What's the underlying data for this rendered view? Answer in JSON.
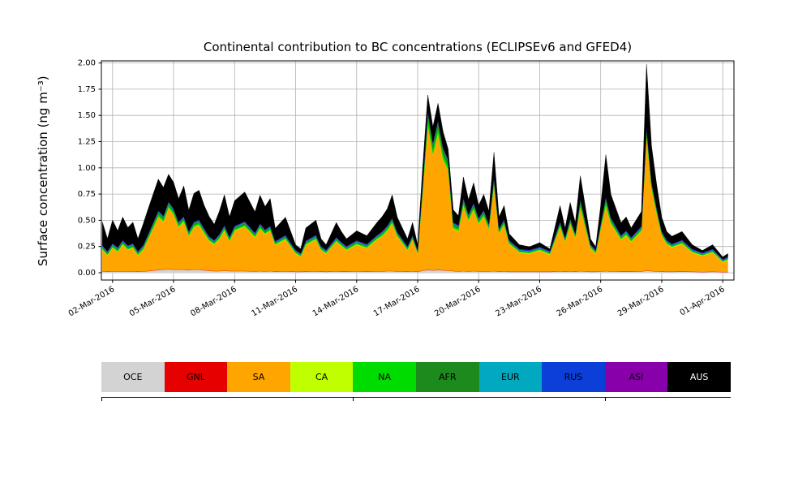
{
  "chart_data": {
    "type": "stacked_area",
    "title": "Continental contribution to BC concentrations (ECLIPSEv6 and GFED4)",
    "ylabel": "Surface concentration (ng m⁻³)",
    "xlabel": "",
    "grid": true,
    "legend_position": "bottom",
    "ylim": [
      -0.07,
      2.02
    ],
    "yticks": [
      0,
      0.25,
      0.5,
      0.75,
      1.0,
      1.25,
      1.5,
      1.75,
      2.0
    ],
    "ytick_labels": [
      "0.00",
      "0.25",
      "0.50",
      "0.75",
      "1.00",
      "1.25",
      "1.50",
      "1.75",
      "2.00"
    ],
    "xlim": [
      1.45,
      32.55
    ],
    "xticks": [
      2,
      5,
      8,
      11,
      14,
      17,
      20,
      23,
      26,
      29,
      32
    ],
    "xtick_labels": [
      "02-Mar-2016",
      "05-Mar-2016",
      "08-Mar-2016",
      "11-Mar-2016",
      "14-Mar-2016",
      "17-Mar-2016",
      "20-Mar-2016",
      "23-Mar-2016",
      "26-Mar-2016",
      "29-Mar-2016",
      "01-Apr-2016"
    ],
    "x_days": [
      1.5,
      1.75,
      2,
      2.25,
      2.5,
      2.75,
      3,
      3.25,
      3.5,
      3.75,
      4,
      4.25,
      4.5,
      4.75,
      5,
      5.25,
      5.5,
      5.75,
      6,
      6.25,
      6.5,
      6.75,
      7,
      7.25,
      7.5,
      7.75,
      8,
      8.5,
      9,
      9.25,
      9.5,
      9.75,
      10,
      10.5,
      11,
      11.25,
      11.5,
      12,
      12.25,
      12.5,
      13,
      13.25,
      13.5,
      14,
      14.5,
      15,
      15.25,
      15.5,
      15.75,
      16,
      16.5,
      16.75,
      17,
      17.25,
      17.5,
      17.75,
      18,
      18.25,
      18.5,
      18.75,
      19,
      19.25,
      19.5,
      19.75,
      20,
      20.25,
      20.5,
      20.75,
      21,
      21.25,
      21.5,
      22,
      22.5,
      23,
      23.5,
      24,
      24.25,
      24.5,
      24.75,
      25,
      25.5,
      25.75,
      26,
      26.25,
      26.5,
      27,
      27.25,
      27.5,
      28,
      28.25,
      28.5,
      28.75,
      29,
      29.25,
      29.5,
      30,
      30.5,
      31,
      31.5,
      32,
      32.25
    ],
    "series": [
      {
        "name": "OCE",
        "color": "#d3d3d3",
        "values": [
          0.012,
          0.01,
          0.012,
          0.012,
          0.012,
          0.012,
          0.012,
          0.01,
          0.012,
          0.015,
          0.02,
          0.025,
          0.03,
          0.032,
          0.03,
          0.028,
          0.03,
          0.025,
          0.028,
          0.028,
          0.022,
          0.018,
          0.015,
          0.015,
          0.018,
          0.015,
          0.015,
          0.015,
          0.012,
          0.015,
          0.012,
          0.015,
          0.01,
          0.012,
          0.008,
          0.008,
          0.01,
          0.012,
          0.01,
          0.008,
          0.012,
          0.01,
          0.01,
          0.012,
          0.01,
          0.012,
          0.012,
          0.015,
          0.015,
          0.012,
          0.01,
          0.012,
          0.008,
          0.02,
          0.025,
          0.022,
          0.025,
          0.022,
          0.02,
          0.015,
          0.012,
          0.015,
          0.012,
          0.015,
          0.012,
          0.012,
          0.012,
          0.015,
          0.01,
          0.012,
          0.008,
          0.008,
          0.008,
          0.008,
          0.008,
          0.012,
          0.01,
          0.012,
          0.01,
          0.015,
          0.008,
          0.008,
          0.012,
          0.015,
          0.012,
          0.01,
          0.01,
          0.01,
          0.012,
          0.018,
          0.015,
          0.012,
          0.01,
          0.008,
          0.008,
          0.01,
          0.008,
          0.006,
          0.008,
          0.006,
          0.006
        ]
      },
      {
        "name": "GNL",
        "color": "#e60000",
        "constant": 0.003
      },
      {
        "name": "SA",
        "color": "#ffa500",
        "values": [
          0.2,
          0.15,
          0.22,
          0.18,
          0.25,
          0.2,
          0.22,
          0.15,
          0.2,
          0.3,
          0.4,
          0.5,
          0.45,
          0.58,
          0.52,
          0.4,
          0.45,
          0.32,
          0.4,
          0.42,
          0.35,
          0.28,
          0.25,
          0.3,
          0.38,
          0.28,
          0.38,
          0.42,
          0.32,
          0.4,
          0.35,
          0.38,
          0.25,
          0.3,
          0.17,
          0.14,
          0.25,
          0.3,
          0.2,
          0.17,
          0.28,
          0.24,
          0.2,
          0.25,
          0.22,
          0.3,
          0.33,
          0.38,
          0.45,
          0.33,
          0.2,
          0.3,
          0.17,
          0.75,
          1.38,
          1.1,
          1.3,
          1.05,
          0.95,
          0.4,
          0.38,
          0.62,
          0.48,
          0.58,
          0.45,
          0.52,
          0.4,
          0.82,
          0.36,
          0.44,
          0.26,
          0.18,
          0.17,
          0.2,
          0.16,
          0.42,
          0.28,
          0.45,
          0.32,
          0.6,
          0.22,
          0.17,
          0.4,
          0.62,
          0.45,
          0.3,
          0.34,
          0.28,
          0.38,
          1.28,
          0.78,
          0.55,
          0.34,
          0.26,
          0.23,
          0.26,
          0.18,
          0.15,
          0.18,
          0.09,
          0.11
        ]
      },
      {
        "name": "CA",
        "color": "#bfff00",
        "constant": 0.006
      },
      {
        "name": "NA",
        "color": "#00dc00",
        "values": [
          0.012,
          0.01,
          0.012,
          0.012,
          0.012,
          0.012,
          0.012,
          0.01,
          0.012,
          0.015,
          0.02,
          0.022,
          0.02,
          0.022,
          0.02,
          0.018,
          0.018,
          0.015,
          0.018,
          0.018,
          0.015,
          0.012,
          0.012,
          0.015,
          0.015,
          0.012,
          0.015,
          0.015,
          0.012,
          0.015,
          0.012,
          0.015,
          0.01,
          0.012,
          0.008,
          0.008,
          0.012,
          0.012,
          0.01,
          0.008,
          0.012,
          0.01,
          0.01,
          0.012,
          0.01,
          0.012,
          0.015,
          0.015,
          0.018,
          0.012,
          0.01,
          0.012,
          0.008,
          0.035,
          0.055,
          0.045,
          0.05,
          0.045,
          0.04,
          0.02,
          0.018,
          0.025,
          0.02,
          0.022,
          0.018,
          0.02,
          0.015,
          0.028,
          0.015,
          0.018,
          0.01,
          0.008,
          0.008,
          0.008,
          0.008,
          0.018,
          0.012,
          0.018,
          0.012,
          0.035,
          0.01,
          0.008,
          0.018,
          0.035,
          0.02,
          0.012,
          0.015,
          0.012,
          0.015,
          0.04,
          0.025,
          0.018,
          0.012,
          0.01,
          0.008,
          0.01,
          0.008,
          0.006,
          0.008,
          0.005,
          0.006
        ]
      },
      {
        "name": "AFR",
        "color": "#1c8a1c",
        "values": [
          0.012,
          0.01,
          0.012,
          0.012,
          0.012,
          0.012,
          0.012,
          0.01,
          0.012,
          0.015,
          0.018,
          0.02,
          0.018,
          0.02,
          0.018,
          0.015,
          0.015,
          0.012,
          0.015,
          0.015,
          0.012,
          0.012,
          0.01,
          0.012,
          0.015,
          0.012,
          0.012,
          0.015,
          0.012,
          0.015,
          0.012,
          0.012,
          0.008,
          0.01,
          0.006,
          0.006,
          0.01,
          0.012,
          0.008,
          0.006,
          0.01,
          0.008,
          0.008,
          0.01,
          0.008,
          0.01,
          0.012,
          0.012,
          0.015,
          0.01,
          0.008,
          0.01,
          0.006,
          0.04,
          0.06,
          0.05,
          0.055,
          0.05,
          0.045,
          0.02,
          0.018,
          0.028,
          0.02,
          0.025,
          0.018,
          0.02,
          0.015,
          0.03,
          0.012,
          0.015,
          0.008,
          0.006,
          0.006,
          0.006,
          0.006,
          0.015,
          0.01,
          0.015,
          0.01,
          0.03,
          0.008,
          0.006,
          0.015,
          0.03,
          0.018,
          0.01,
          0.012,
          0.01,
          0.012,
          0.035,
          0.022,
          0.015,
          0.01,
          0.008,
          0.006,
          0.008,
          0.006,
          0.005,
          0.006,
          0.004,
          0.005
        ]
      },
      {
        "name": "EUR",
        "color": "#00a9c0",
        "constant": 0.006
      },
      {
        "name": "RUS",
        "color": "#0b3fd8",
        "constant": 0.006
      },
      {
        "name": "ASI",
        "color": "#8800aa",
        "constant": 0.004
      },
      {
        "name": "AUS",
        "color": "#000000",
        "values": [
          0.22,
          0.12,
          0.22,
          0.16,
          0.22,
          0.17,
          0.2,
          0.12,
          0.2,
          0.24,
          0.27,
          0.3,
          0.27,
          0.26,
          0.25,
          0.22,
          0.29,
          0.2,
          0.27,
          0.28,
          0.22,
          0.19,
          0.15,
          0.22,
          0.29,
          0.19,
          0.24,
          0.28,
          0.2,
          0.27,
          0.22,
          0.26,
          0.12,
          0.17,
          0.05,
          0.04,
          0.12,
          0.14,
          0.07,
          0.05,
          0.14,
          0.1,
          0.07,
          0.09,
          0.08,
          0.12,
          0.14,
          0.16,
          0.22,
          0.14,
          0.07,
          0.12,
          0.05,
          0.15,
          0.15,
          0.15,
          0.16,
          0.15,
          0.1,
          0.12,
          0.09,
          0.2,
          0.14,
          0.19,
          0.12,
          0.15,
          0.12,
          0.23,
          0.11,
          0.13,
          0.06,
          0.04,
          0.03,
          0.04,
          0.02,
          0.15,
          0.09,
          0.15,
          0.1,
          0.22,
          0.05,
          0.03,
          0.17,
          0.4,
          0.22,
          0.12,
          0.13,
          0.09,
          0.14,
          0.59,
          0.34,
          0.22,
          0.13,
          0.08,
          0.07,
          0.08,
          0.04,
          0.02,
          0.04,
          0.02,
          0.03
        ]
      }
    ],
    "grid_color": "#b0b0b0"
  }
}
